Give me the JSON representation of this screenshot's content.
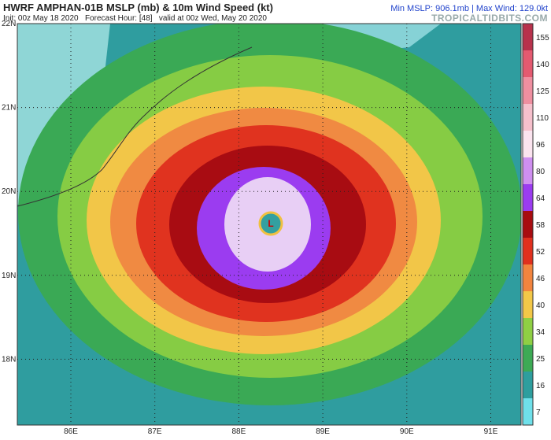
{
  "header": {
    "title": "HWRF AMPHAN-01B MSLP (mb) & 10m Wind Speed (kt)",
    "subtitle": "Init: 00z May 18 2020   Forecast Hour: [48]   valid at 00z Wed, May 20 2020",
    "stats": "Min MSLP: 906.1mb | Max Wind: 129.0kt",
    "source": "TROPICALTIDBITS.COM"
  },
  "map": {
    "lat_labels": [
      "22N",
      "21N",
      "20N",
      "19N",
      "18N"
    ],
    "lon_labels": [
      "86E",
      "87E",
      "88E",
      "89E",
      "90E",
      "91E"
    ],
    "center_label": "L"
  },
  "colorbar": {
    "ticks": [
      155,
      140,
      125,
      110,
      96,
      80,
      64,
      58,
      52,
      46,
      40,
      34,
      25,
      16,
      7
    ],
    "colors": [
      "#b8324c",
      "#e45a70",
      "#ef8fa0",
      "#f6c0cc",
      "#fbe4ef",
      "#cf8ff0",
      "#9b3cf0",
      "#a80c10",
      "#e0301e",
      "#f2843e",
      "#f3c848",
      "#8fcf44",
      "#3daa55",
      "#2e9e9e",
      "#6fe0ea"
    ]
  }
}
